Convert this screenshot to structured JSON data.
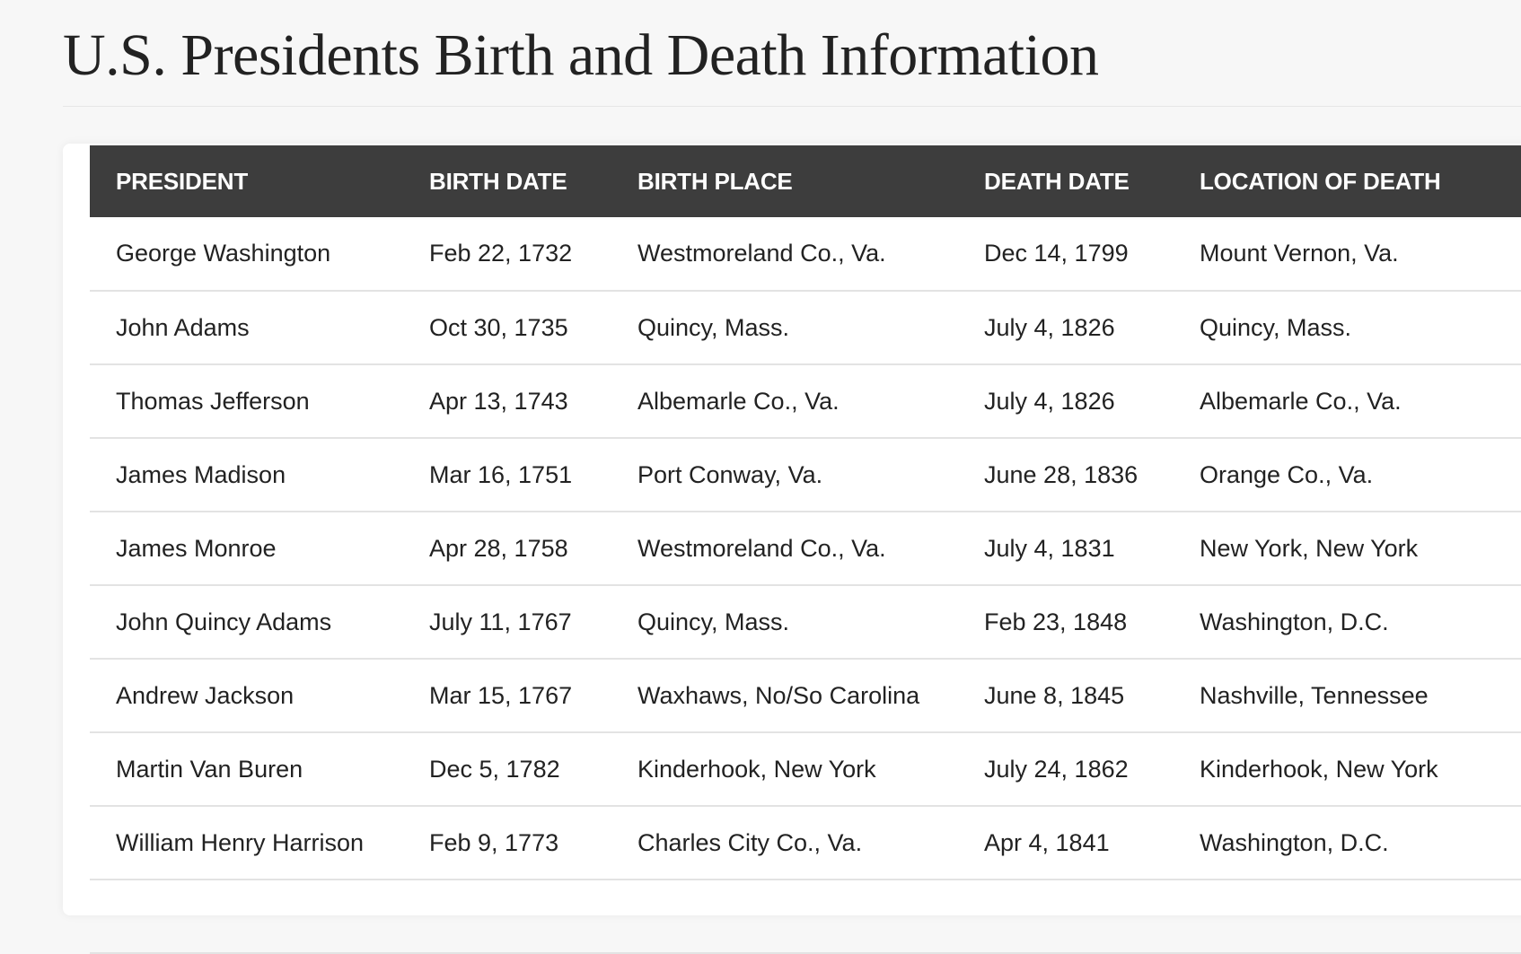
{
  "title": "U.S. Presidents Birth and Death Information",
  "table": {
    "headers": [
      "PRESIDENT",
      "BIRTH DATE",
      "BIRTH PLACE",
      "DEATH DATE",
      "LOCATION OF DEATH"
    ],
    "rows": [
      [
        "George Washington",
        "Feb 22, 1732",
        "Westmoreland Co., Va.",
        "Dec 14, 1799",
        "Mount Vernon, Va."
      ],
      [
        "John Adams",
        "Oct 30, 1735",
        "Quincy, Mass.",
        "July 4, 1826",
        "Quincy, Mass."
      ],
      [
        "Thomas Jefferson",
        "Apr 13, 1743",
        "Albemarle Co., Va.",
        "July 4, 1826",
        "Albemarle Co., Va."
      ],
      [
        "James Madison",
        "Mar 16, 1751",
        "Port Conway, Va.",
        "June 28, 1836",
        "Orange Co., Va."
      ],
      [
        "James Monroe",
        "Apr 28, 1758",
        "Westmoreland Co., Va.",
        "July 4, 1831",
        "New York, New York"
      ],
      [
        "John Quincy Adams",
        "July 11, 1767",
        "Quincy, Mass.",
        "Feb 23, 1848",
        "Washington, D.C."
      ],
      [
        "Andrew Jackson",
        "Mar 15, 1767",
        "Waxhaws, No/So Carolina",
        "June 8, 1845",
        "Nashville, Tennessee"
      ],
      [
        "Martin Van Buren",
        "Dec 5, 1782",
        "Kinderhook, New York",
        "July 24, 1862",
        "Kinderhook, New York"
      ],
      [
        "William Henry Harrison",
        "Feb 9, 1773",
        "Charles City Co., Va.",
        "Apr 4, 1841",
        "Washington, D.C."
      ],
      [
        "",
        "",
        "",
        "",
        ""
      ]
    ]
  },
  "colors": {
    "header_bg": "#3d3d3d",
    "link": "#3c5269",
    "text": "#222222",
    "page_bg": "#f7f7f7"
  }
}
